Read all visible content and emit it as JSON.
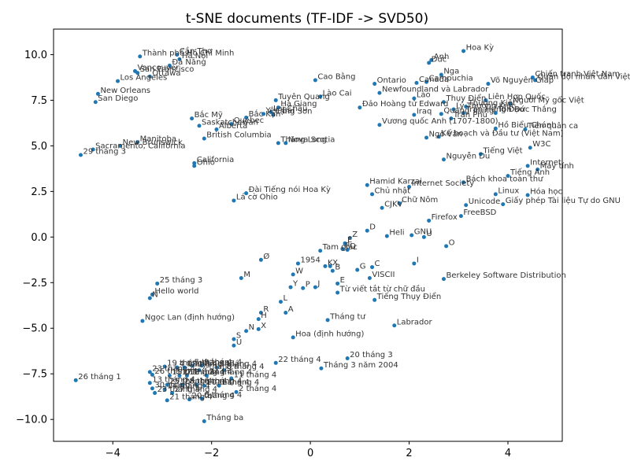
{
  "chart_data": {
    "type": "scatter",
    "title": "t-SNE documents (TF-IDF -> SVD50)",
    "xlabel": "",
    "ylabel": "",
    "xlim": [
      -5.2,
      5.1
    ],
    "ylim": [
      -11.2,
      11.4
    ],
    "xticks": [
      -4,
      -2,
      0,
      2,
      4
    ],
    "yticks": [
      -10.0,
      -7.5,
      -5.0,
      -2.5,
      0.0,
      2.5,
      5.0,
      7.5,
      10.0
    ],
    "ytick_labels": [
      "−10.0",
      "−7.5",
      "−5.0",
      "−2.5",
      "0.0",
      "2.5",
      "5.0",
      "7.5",
      "10.0"
    ],
    "xtick_labels": [
      "−4",
      "−2",
      "0",
      "2",
      "4"
    ],
    "grid": false,
    "point_color": "#1f77b4",
    "label_color": "#333333",
    "points": [
      {
        "label": "Hoa Kỳ",
        "x": 3.1,
        "y": 10.2
      },
      {
        "label": "Anh",
        "x": 2.45,
        "y": 9.7
      },
      {
        "label": "Đức",
        "x": 2.4,
        "y": 9.55
      },
      {
        "label": "Nga",
        "x": 2.65,
        "y": 8.9
      },
      {
        "label": "Thành phố Hồ Chí Minh",
        "x": -3.45,
        "y": 9.9
      },
      {
        "label": "Cần Thơ",
        "x": -2.7,
        "y": 10.0
      },
      {
        "label": "Hà Nội",
        "x": -2.65,
        "y": 9.75
      },
      {
        "label": "Đà Nẵng",
        "x": -2.85,
        "y": 9.4
      },
      {
        "label": "Vancouver",
        "x": -3.55,
        "y": 9.1
      },
      {
        "label": "San Francisco",
        "x": -3.5,
        "y": 9.0
      },
      {
        "label": "Ottawa",
        "x": -3.25,
        "y": 8.8
      },
      {
        "label": "Los Angeles",
        "x": -3.9,
        "y": 8.55
      },
      {
        "label": "New Orleans",
        "x": -4.3,
        "y": 7.85
      },
      {
        "label": "San Diego",
        "x": -4.35,
        "y": 7.4
      },
      {
        "label": "Cao Bằng",
        "x": 0.1,
        "y": 8.6
      },
      {
        "label": "Ontario",
        "x": 1.3,
        "y": 8.4
      },
      {
        "label": "Canada",
        "x": 2.15,
        "y": 8.45
      },
      {
        "label": "Campuchia",
        "x": 2.35,
        "y": 8.5
      },
      {
        "label": "Võ Nguyên Giáp",
        "x": 3.6,
        "y": 8.4
      },
      {
        "label": "Chiến tranh Việt Nam",
        "x": 4.5,
        "y": 8.75
      },
      {
        "label": "Quân đội nhân dân Việt Nam",
        "x": 4.55,
        "y": 8.6
      },
      {
        "label": "Newfoundland và Labrador",
        "x": 1.4,
        "y": 7.9
      },
      {
        "label": "Lào",
        "x": 2.1,
        "y": 7.6
      },
      {
        "label": "Thụy Điển",
        "x": 2.7,
        "y": 7.4
      },
      {
        "label": "Liên Hợp Quốc",
        "x": 3.55,
        "y": 7.5
      },
      {
        "label": "Người Mỹ gốc Việt",
        "x": 4.05,
        "y": 7.3
      },
      {
        "label": "Tuyên Quang",
        "x": -0.7,
        "y": 7.5
      },
      {
        "label": "Lào Cai",
        "x": 0.2,
        "y": 7.7
      },
      {
        "label": "Hà Giang",
        "x": -0.65,
        "y": 7.1
      },
      {
        "label": "Đảo Hoàng tử Edward",
        "x": 1.0,
        "y": 7.1
      },
      {
        "label": "Thương Kiệt",
        "x": 3.15,
        "y": 7.15
      },
      {
        "label": "Lý Thường Kiệt",
        "x": 2.9,
        "y": 7.0
      },
      {
        "label": "Iraq",
        "x": 2.1,
        "y": 6.7
      },
      {
        "label": "Quang Trung",
        "x": 2.65,
        "y": 6.75
      },
      {
        "label": "Trần Hưng Đạo",
        "x": 3.1,
        "y": 6.8
      },
      {
        "label": "Tôn Đức Thắng",
        "x": 3.75,
        "y": 6.8
      },
      {
        "label": "Trần Phú",
        "x": 2.85,
        "y": 6.5
      },
      {
        "label": "Bắc Mỹ",
        "x": -2.4,
        "y": 6.5
      },
      {
        "label": "Bắc Kạn",
        "x": -1.3,
        "y": 6.55
      },
      {
        "label": "Yên Bái",
        "x": -0.95,
        "y": 6.75
      },
      {
        "label": "Lai Châu",
        "x": -0.8,
        "y": 6.85
      },
      {
        "label": "Lạng Sơn",
        "x": -0.75,
        "y": 6.7
      },
      {
        "label": "Vương quốc Anh (1707-1800)",
        "x": 1.4,
        "y": 6.15
      },
      {
        "label": "Saskatchewan",
        "x": -2.25,
        "y": 6.1
      },
      {
        "label": "Québec",
        "x": -1.6,
        "y": 6.2
      },
      {
        "label": "Alberta",
        "x": -1.9,
        "y": 5.9
      },
      {
        "label": "Hồ Biểu Chánh",
        "x": 3.75,
        "y": 5.95
      },
      {
        "label": "Tiền quân ca",
        "x": 4.35,
        "y": 5.9
      },
      {
        "label": "Ngô Văn",
        "x": 2.35,
        "y": 5.45
      },
      {
        "label": "Kế hoạch và Đầu tư (Việt Nam)",
        "x": 2.6,
        "y": 5.5
      },
      {
        "label": "British Columbia",
        "x": -2.15,
        "y": 5.4
      },
      {
        "label": "Thăng Long",
        "x": -0.65,
        "y": 5.15
      },
      {
        "label": "Nova Scotia",
        "x": -0.5,
        "y": 5.15
      },
      {
        "label": "Manitoba",
        "x": -3.5,
        "y": 5.2
      },
      {
        "label": "New Brunswick",
        "x": -3.85,
        "y": 5.0
      },
      {
        "label": "Sacramento, California",
        "x": -4.4,
        "y": 4.8
      },
      {
        "label": "29 tháng 3",
        "x": -4.65,
        "y": 4.5
      },
      {
        "label": "W3C",
        "x": 4.45,
        "y": 4.9
      },
      {
        "label": "Tiếng Việt",
        "x": 3.45,
        "y": 4.55
      },
      {
        "label": "Nguyễn Du",
        "x": 2.7,
        "y": 4.25
      },
      {
        "label": "California",
        "x": -2.35,
        "y": 4.05
      },
      {
        "label": "Ohio",
        "x": -2.35,
        "y": 3.9
      },
      {
        "label": "Internet",
        "x": 4.4,
        "y": 3.9
      },
      {
        "label": "Máy tính",
        "x": 4.6,
        "y": 3.7
      },
      {
        "label": "Tiếng Anh",
        "x": 4.0,
        "y": 3.35
      },
      {
        "label": "Bách khoa toàn thư",
        "x": 3.1,
        "y": 3.0
      },
      {
        "label": "Hamid Karzai",
        "x": 1.15,
        "y": 2.85
      },
      {
        "label": "Internet Society",
        "x": 2.0,
        "y": 2.75
      },
      {
        "label": "Chủ nhật",
        "x": 1.25,
        "y": 2.35
      },
      {
        "label": "Linux",
        "x": 3.75,
        "y": 2.35
      },
      {
        "label": "Hóa học",
        "x": 4.4,
        "y": 2.3
      },
      {
        "label": "Đài Tiếng nói Hoa Kỳ",
        "x": -1.3,
        "y": 2.4
      },
      {
        "label": "Lá cờ Ohio",
        "x": -1.55,
        "y": 2.0
      },
      {
        "label": "Chữ Nôm",
        "x": 1.8,
        "y": 1.85
      },
      {
        "label": "Unicode",
        "x": 3.15,
        "y": 1.75
      },
      {
        "label": "Giấy phép Tài liệu Tự do GNU",
        "x": 3.9,
        "y": 1.8
      },
      {
        "label": "CJKV",
        "x": 1.45,
        "y": 1.6
      },
      {
        "label": "FreeBSD",
        "x": 3.05,
        "y": 1.15
      },
      {
        "label": "Firefox",
        "x": 2.4,
        "y": 0.9
      },
      {
        "label": "D",
        "x": 1.15,
        "y": 0.35
      },
      {
        "label": "Heli",
        "x": 1.55,
        "y": 0.05
      },
      {
        "label": "GNU",
        "x": 2.05,
        "y": 0.1
      },
      {
        "label": "U",
        "x": 2.3,
        "y": 0.0
      },
      {
        "label": "Z",
        "x": 0.8,
        "y": -0.05
      },
      {
        "label": "E",
        "x": 0.7,
        "y": -0.35
      },
      {
        "label": "O",
        "x": 2.75,
        "y": -0.5
      },
      {
        "label": "Tam giác",
        "x": 0.2,
        "y": -0.75
      },
      {
        "label": "R",
        "x": 0.65,
        "y": -0.65
      },
      {
        "label": "Q",
        "x": 0.75,
        "y": -0.7
      },
      {
        "label": "Ø",
        "x": -1.0,
        "y": -1.25
      },
      {
        "label": "1954",
        "x": -0.25,
        "y": -1.45
      },
      {
        "label": "K",
        "x": 0.3,
        "y": -1.6
      },
      {
        "label": "X",
        "x": 0.4,
        "y": -1.6
      },
      {
        "label": "G",
        "x": 0.95,
        "y": -1.8
      },
      {
        "label": "C",
        "x": 1.25,
        "y": -1.65
      },
      {
        "label": "B",
        "x": 0.45,
        "y": -1.85
      },
      {
        "label": "I",
        "x": 2.1,
        "y": -1.45
      },
      {
        "label": "W",
        "x": -0.35,
        "y": -2.05
      },
      {
        "label": "M",
        "x": -1.4,
        "y": -2.25
      },
      {
        "label": "VISCII",
        "x": 1.2,
        "y": -2.25
      },
      {
        "label": "Berkeley Software Distribution",
        "x": 2.7,
        "y": -2.3
      },
      {
        "label": "E",
        "x": 0.55,
        "y": -2.55
      },
      {
        "label": "Y",
        "x": -0.4,
        "y": -2.75
      },
      {
        "label": "P",
        "x": -0.15,
        "y": -2.8
      },
      {
        "label": "J",
        "x": 0.1,
        "y": -2.75
      },
      {
        "label": "25 tháng 3",
        "x": -3.1,
        "y": -2.55
      },
      {
        "label": "Từ viết tắt từ chữ đầu",
        "x": 0.55,
        "y": -3.05
      },
      {
        "label": "Hello world",
        "x": -3.2,
        "y": -3.15
      },
      {
        "label": "N",
        "x": -3.25,
        "y": -3.35
      },
      {
        "label": "Tiếng Thụy Điển",
        "x": 1.3,
        "y": -3.45
      },
      {
        "label": "L",
        "x": -0.6,
        "y": -3.55
      },
      {
        "label": "R",
        "x": -1.0,
        "y": -4.15
      },
      {
        "label": "A",
        "x": -0.5,
        "y": -4.15
      },
      {
        "label": "H",
        "x": -1.05,
        "y": -4.5
      },
      {
        "label": "Ngọc Lan (định hướng)",
        "x": -3.4,
        "y": -4.6
      },
      {
        "label": "Tháng tư",
        "x": 0.35,
        "y": -4.55
      },
      {
        "label": "Labrador",
        "x": 1.7,
        "y": -4.85
      },
      {
        "label": "N",
        "x": -1.3,
        "y": -5.15
      },
      {
        "label": "X",
        "x": -1.05,
        "y": -5.05
      },
      {
        "label": "Hoa (định hướng)",
        "x": -0.35,
        "y": -5.5
      },
      {
        "label": "S",
        "x": -1.55,
        "y": -5.6
      },
      {
        "label": "U",
        "x": -1.55,
        "y": -5.95
      },
      {
        "label": "20 tháng 3",
        "x": 0.75,
        "y": -6.65
      },
      {
        "label": "22 tháng 4",
        "x": -0.7,
        "y": -6.9
      },
      {
        "label": "Tháng 3 năm 2004",
        "x": 0.22,
        "y": -7.2
      },
      {
        "label": "19 tháng 4",
        "x": -2.95,
        "y": -7.1
      },
      {
        "label": "4 tháng 4",
        "x": -2.7,
        "y": -7.15
      },
      {
        "label": "12 tháng 4",
        "x": -2.55,
        "y": -7.15
      },
      {
        "label": "5 tháng 4",
        "x": -2.4,
        "y": -7.05
      },
      {
        "label": "9 tháng 4",
        "x": -2.2,
        "y": -7.05
      },
      {
        "label": "3 tháng 4",
        "x": -1.9,
        "y": -7.15
      },
      {
        "label": "23 tháng 4",
        "x": -3.25,
        "y": -7.4
      },
      {
        "label": "7 tháng 4",
        "x": -2.25,
        "y": -7.3
      },
      {
        "label": "8 tháng 4",
        "x": -1.75,
        "y": -7.3
      },
      {
        "label": "26 tháng 4",
        "x": -3.2,
        "y": -7.55
      },
      {
        "label": "15 tháng 4",
        "x": -2.85,
        "y": -7.6
      },
      {
        "label": "17 tháng 4",
        "x": -2.65,
        "y": -7.6
      },
      {
        "label": "18 tháng 4",
        "x": -2.5,
        "y": -7.6
      },
      {
        "label": "24 tháng 4",
        "x": -2.1,
        "y": -7.6
      },
      {
        "label": "11 tháng 4",
        "x": -1.6,
        "y": -7.75
      },
      {
        "label": "26 tháng 1",
        "x": -4.75,
        "y": -7.85
      },
      {
        "label": "13 tháng 4",
        "x": -3.25,
        "y": -8.0
      },
      {
        "label": "25 tháng 4",
        "x": -2.9,
        "y": -8.1
      },
      {
        "label": "28 tháng 4",
        "x": -2.6,
        "y": -8.1
      },
      {
        "label": "16 tháng 4",
        "x": -2.3,
        "y": -8.1
      },
      {
        "label": "10 tháng 4",
        "x": -2.15,
        "y": -8.15
      },
      {
        "label": "1 tháng 4",
        "x": -1.85,
        "y": -8.15
      },
      {
        "label": "30 tháng 4",
        "x": -3.2,
        "y": -8.3
      },
      {
        "label": "14 tháng 4",
        "x": -2.95,
        "y": -8.35
      },
      {
        "label": "2 tháng 4",
        "x": -1.5,
        "y": -8.5
      },
      {
        "label": "23 tháng 4",
        "x": -3.15,
        "y": -8.55
      },
      {
        "label": "27 tháng 4",
        "x": -2.8,
        "y": -8.55
      },
      {
        "label": "21 tháng 4",
        "x": -2.9,
        "y": -8.95
      },
      {
        "label": "20 tháng 4",
        "x": -2.45,
        "y": -8.9
      },
      {
        "label": "6 tháng 4",
        "x": -2.2,
        "y": -8.85
      },
      {
        "label": "Tháng ba",
        "x": -2.15,
        "y": -10.1
      }
    ]
  }
}
